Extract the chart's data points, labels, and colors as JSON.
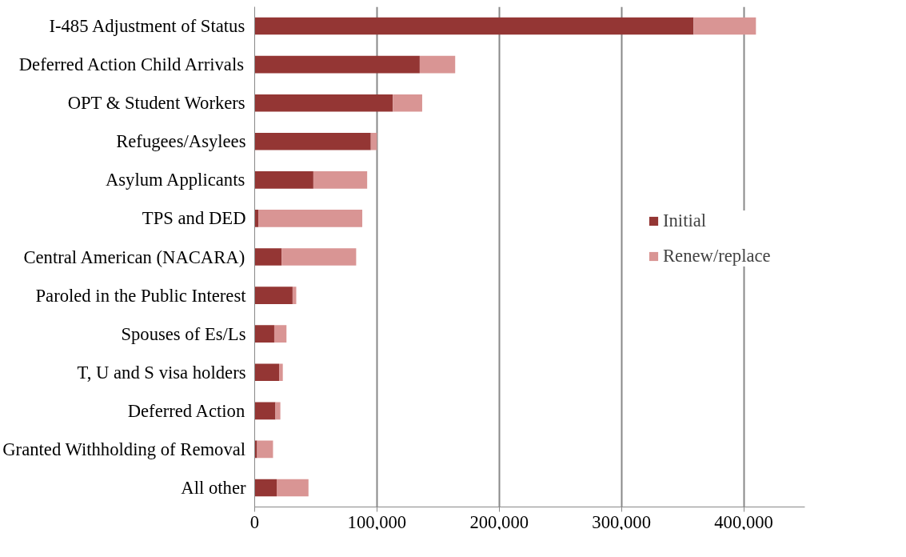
{
  "chart_data": {
    "type": "bar",
    "orientation": "horizontal",
    "stacked": true,
    "categories": [
      "I-485 Adjustment of Status",
      "Deferred Action Child Arrivals",
      "OPT & Student Workers",
      "Refugees/Asylees",
      "Asylum Applicants",
      "TPS and DED",
      "Central American (NACARA)",
      "Paroled in the Public Interest",
      "Spouses of Es/Ls",
      "T, U and S visa holders",
      "Deferred Action",
      "Granted Withholding of Removal",
      "All other"
    ],
    "series": [
      {
        "name": "Initial",
        "color": "#943634",
        "values": [
          359000,
          135000,
          113000,
          95000,
          48000,
          3000,
          22000,
          31000,
          16000,
          20000,
          17000,
          2000,
          18000
        ]
      },
      {
        "name": "Renew/replace",
        "color": "#d99594",
        "values": [
          51000,
          29000,
          24000,
          5000,
          44000,
          85000,
          61000,
          3000,
          10000,
          3000,
          4000,
          13000,
          26000
        ]
      }
    ],
    "xlim": [
      0,
      450000
    ],
    "xticks": [
      0,
      {
        "value": 100000,
        "label": "100,000"
      },
      {
        "value": 200000,
        "label": "200,000"
      },
      {
        "value": 300000,
        "label": "300,000"
      },
      {
        "value": 400000,
        "label": "400,000"
      }
    ],
    "grid": "x",
    "legend": "right"
  }
}
